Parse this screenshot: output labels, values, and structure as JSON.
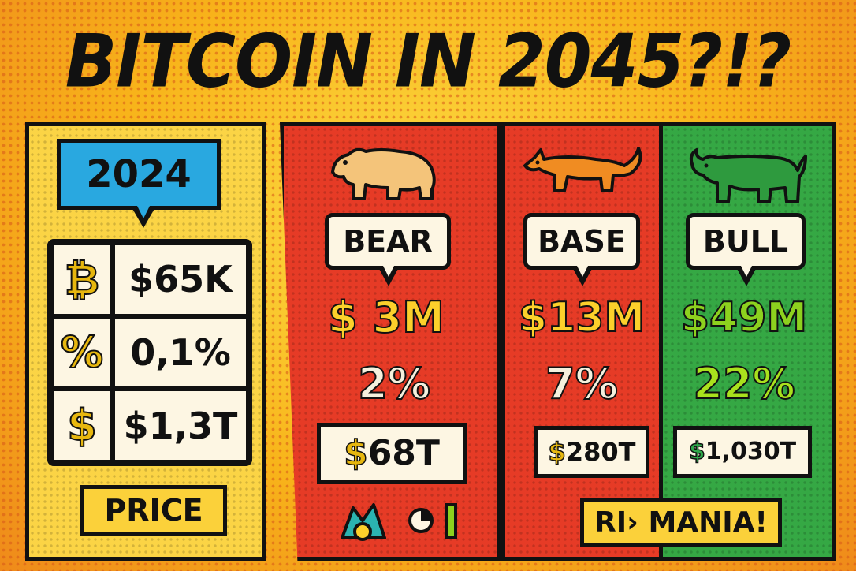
{
  "title": "BITCOIN IN 2045?!?",
  "current": {
    "year": "2024",
    "rows": [
      {
        "symbol": "₿",
        "icon": "bitcoin-icon",
        "value": "$65K"
      },
      {
        "symbol": "%",
        "icon": "percent-icon",
        "value": "0,1%"
      },
      {
        "symbol": "$",
        "icon": "dollar-icon",
        "value": "$1,3T"
      }
    ],
    "label": "PRICE"
  },
  "scenarios": [
    {
      "name": "BEAR",
      "animal": "bear-icon",
      "price_cur": "$",
      "price": "3M",
      "pct": "2%",
      "cap_cur": "$",
      "cap": "68T"
    },
    {
      "name": "BASE",
      "animal": "fox-icon",
      "price": "$13M",
      "pct": "7%",
      "cap_cur": "$",
      "cap": "280T"
    },
    {
      "name": "BULL",
      "animal": "bull-icon",
      "price": "$49M",
      "pct": "22%",
      "cap_cur": "$",
      "cap": "1,030T"
    }
  ],
  "mania_label": "RI› MANIA!",
  "colors": {
    "bear": "#e63b26",
    "base": "#e63b26",
    "bull": "#35a844",
    "current": "#fbd445",
    "accent": "#29a8e0"
  }
}
